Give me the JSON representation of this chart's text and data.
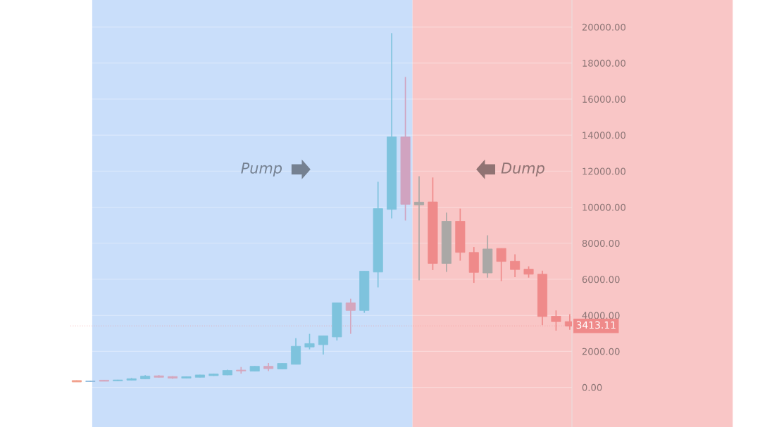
{
  "chart_data": {
    "type": "candlestick",
    "categories": [
      null,
      null,
      null,
      null,
      null,
      null,
      null,
      null,
      null,
      null,
      null,
      null,
      null,
      null,
      null,
      null,
      null,
      null,
      null,
      null,
      null,
      null,
      null,
      null,
      null,
      null,
      null,
      null,
      null,
      null,
      null,
      null,
      null,
      null,
      null,
      null,
      null
    ],
    "ohlc": [
      [
        380,
        390,
        300,
        300
      ],
      [
        320,
        360,
        300,
        350
      ],
      [
        400,
        410,
        340,
        340
      ],
      [
        360,
        420,
        350,
        410
      ],
      [
        400,
        520,
        390,
        480
      ],
      [
        470,
        680,
        460,
        620
      ],
      [
        640,
        680,
        540,
        560
      ],
      [
        600,
        620,
        470,
        510
      ],
      [
        510,
        600,
        500,
        590
      ],
      [
        560,
        700,
        550,
        690
      ],
      [
        650,
        750,
        640,
        740
      ],
      [
        690,
        980,
        680,
        940
      ],
      [
        960,
        1130,
        760,
        910
      ],
      [
        900,
        1180,
        890,
        1170
      ],
      [
        1170,
        1350,
        900,
        1040
      ],
      [
        1020,
        1340,
        1000,
        1330
      ],
      [
        1280,
        2730,
        1280,
        2280
      ],
      [
        2240,
        2970,
        2110,
        2430
      ],
      [
        2370,
        2860,
        1820,
        2860
      ],
      [
        2800,
        4690,
        2600,
        4690
      ],
      [
        4690,
        4920,
        2970,
        4270
      ],
      [
        4270,
        6450,
        4140,
        6450
      ],
      [
        6400,
        11410,
        5550,
        9920
      ],
      [
        9880,
        19660,
        9380,
        13900
      ],
      [
        13900,
        17230,
        9260,
        10160
      ],
      [
        10280,
        11720,
        5940,
        10130
      ],
      [
        10290,
        11650,
        6510,
        6880
      ],
      [
        6880,
        9700,
        6410,
        9220
      ],
      [
        9220,
        9920,
        7030,
        7490
      ],
      [
        7490,
        7790,
        5800,
        6380
      ],
      [
        6350,
        8440,
        6090,
        7680
      ],
      [
        7710,
        7710,
        5900,
        6990
      ],
      [
        7000,
        7390,
        6120,
        6540
      ],
      [
        6560,
        6720,
        6090,
        6280
      ],
      [
        6280,
        6480,
        3450,
        3930
      ],
      [
        3950,
        4270,
        3150,
        3650
      ],
      [
        3650,
        4060,
        3200,
        3413.11
      ]
    ],
    "colors": [
      "#f0a08c",
      "#8ab8dc",
      "#d5a6bd",
      "#7ec3dd",
      "#7ec3dd",
      "#7ec3dd",
      "#d5a6bd",
      "#d5a6bd",
      "#7ec3dd",
      "#7ec3dd",
      "#7ec3dd",
      "#7ec3dd",
      "#d5a6bd",
      "#7ec3dd",
      "#d5a6bd",
      "#7ec3dd",
      "#7ec3dd",
      "#7ec3dd",
      "#7ec3dd",
      "#7ec3dd",
      "#d5a6bd",
      "#7ec3dd",
      "#7ec3dd",
      "#7ec3dd",
      "#d0a3c0",
      "#aaa8a6",
      "#ef8a8a",
      "#aaa8a6",
      "#ef8a8a",
      "#ef8a8a",
      "#aaa8a6",
      "#ef8a8a",
      "#ef8a8a",
      "#ef8a8a",
      "#ef8a8a",
      "#ef8a8a",
      "#ef8a8a"
    ],
    "ylim": [
      -2200,
      21500
    ],
    "yticks": [
      {
        "value": 0,
        "label": "0.00"
      },
      {
        "value": 2000,
        "label": "2000.00"
      },
      {
        "value": 4000,
        "label": "4000.00"
      },
      {
        "value": 6000,
        "label": "6000.00"
      },
      {
        "value": 8000,
        "label": "8000.00"
      },
      {
        "value": 10000,
        "label": "10000.00"
      },
      {
        "value": 12000,
        "label": "12000.00"
      },
      {
        "value": 14000,
        "label": "14000.00"
      },
      {
        "value": 16000,
        "label": "16000.00"
      },
      {
        "value": 18000,
        "label": "18000.00"
      },
      {
        "value": 20000,
        "label": "20000.00"
      }
    ],
    "grid": "y",
    "tick_labels": "y",
    "ref_lines": [
      {
        "axis": "y",
        "value": 3413.11,
        "label": "3413.11",
        "color": "#ef8a8a"
      }
    ],
    "annotations": [
      "Pump",
      "Dump"
    ]
  }
}
